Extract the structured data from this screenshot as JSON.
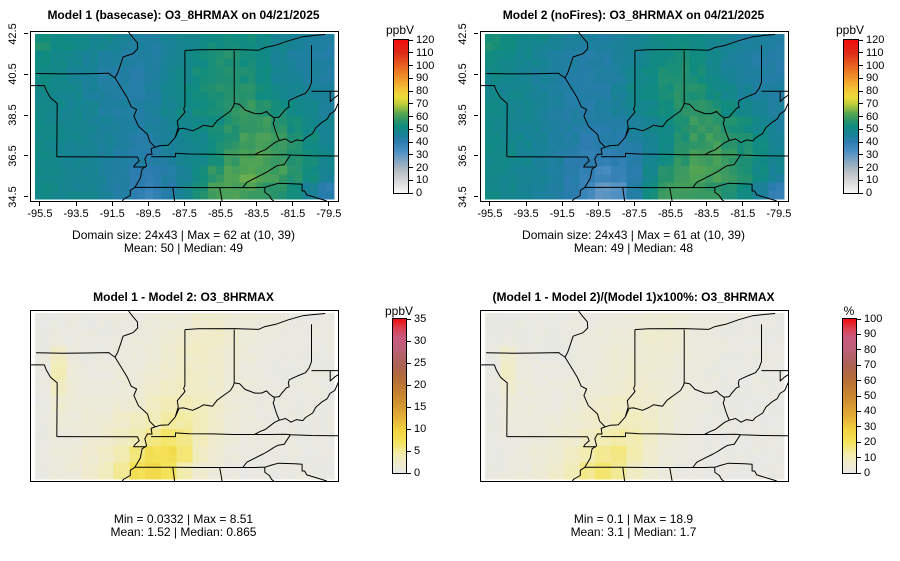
{
  "page": {
    "background": "#ffffff"
  },
  "colormaps": {
    "conc": [
      [
        0,
        "#f8f8f8"
      ],
      [
        0.067,
        "#dcdcdc"
      ],
      [
        0.133,
        "#bcc2c6"
      ],
      [
        0.2,
        "#8aa8c0"
      ],
      [
        0.267,
        "#4f90c4"
      ],
      [
        0.333,
        "#2c7cb0"
      ],
      [
        0.383,
        "#1a8198"
      ],
      [
        0.433,
        "#0f8b80"
      ],
      [
        0.475,
        "#2d9468"
      ],
      [
        0.517,
        "#55a553"
      ],
      [
        0.55,
        "#8bba45"
      ],
      [
        0.583,
        "#c1cc3c"
      ],
      [
        0.625,
        "#ecdc3a"
      ],
      [
        0.683,
        "#f4c136"
      ],
      [
        0.75,
        "#f0952a"
      ],
      [
        0.833,
        "#e7601f"
      ],
      [
        0.917,
        "#de2a17"
      ],
      [
        1,
        "#f20d0d"
      ]
    ],
    "diff": [
      [
        0,
        "#e8e8e4"
      ],
      [
        0.05,
        "#eeebd2"
      ],
      [
        0.12,
        "#f2ecae"
      ],
      [
        0.2,
        "#f4e35c"
      ],
      [
        0.28,
        "#f2d23f"
      ],
      [
        0.38,
        "#e0a936"
      ],
      [
        0.5,
        "#c9862f"
      ],
      [
        0.6,
        "#b76f38"
      ],
      [
        0.7,
        "#aa6254"
      ],
      [
        0.8,
        "#bb6079"
      ],
      [
        0.88,
        "#ca5a7e"
      ],
      [
        0.94,
        "#da3f50"
      ],
      [
        1,
        "#ee0c0c"
      ]
    ]
  },
  "chart_data": {
    "type": "heatmap",
    "layout": "2x2 model comparison maps",
    "lon_range": [
      -96.05,
      -79.05
    ],
    "lat_range": [
      34.33,
      42.63
    ],
    "panels": [
      {
        "id": "model1-basecase",
        "title": "Model 1 (basecase): O3_8HRMAX on 04/21/2025",
        "caption1": "Domain size: 24x43 | Max = 62 at (10, 39)",
        "caption2": "Mean: 50 |  Median: 49",
        "stats": {
          "domain_size": "24x43",
          "max": 62,
          "max_at": "(10, 39)",
          "mean": 50,
          "median": 49
        },
        "colorbar": {
          "unit": "ppbV",
          "min": 0,
          "max": 120,
          "ticks": [
            0,
            10,
            20,
            30,
            40,
            50,
            60,
            70,
            80,
            90,
            100,
            110,
            120
          ],
          "colormap": "conc"
        },
        "axes": {
          "x_ticks": [
            "-95.5",
            "-93.5",
            "-91.5",
            "-89.5",
            "-87.5",
            "-85.5",
            "-83.5",
            "-81.5",
            "-79.5"
          ],
          "y_ticks": [
            "34.5",
            "36.5",
            "38.5",
            "40.5",
            "42.5"
          ]
        },
        "value_jitter": 1.6,
        "grid_north_to_south": [
          [
            54,
            52,
            51,
            49,
            48,
            46,
            45,
            44,
            46,
            48,
            50,
            52,
            53,
            52,
            50,
            48,
            46,
            45,
            44
          ],
          [
            52,
            50,
            49,
            47,
            45,
            44,
            43,
            44,
            46,
            49,
            52,
            54,
            55,
            53,
            50,
            47,
            45,
            44,
            43
          ],
          [
            51,
            49,
            48,
            46,
            44,
            43,
            42,
            44,
            47,
            50,
            53,
            55,
            56,
            54,
            51,
            48,
            46,
            45,
            44
          ],
          [
            50,
            49,
            48,
            46,
            44,
            43,
            43,
            45,
            48,
            51,
            53,
            55,
            57,
            56,
            53,
            50,
            48,
            46,
            45
          ],
          [
            50,
            49,
            48,
            47,
            45,
            44,
            44,
            46,
            48,
            50,
            52,
            54,
            57,
            58,
            56,
            53,
            50,
            48,
            46
          ],
          [
            50,
            49,
            48,
            47,
            46,
            45,
            44,
            45,
            47,
            49,
            51,
            53,
            56,
            59,
            58,
            56,
            53,
            50,
            47
          ],
          [
            50,
            49,
            48,
            47,
            46,
            44,
            43,
            44,
            46,
            48,
            50,
            53,
            56,
            59,
            60,
            58,
            55,
            52,
            48
          ],
          [
            50,
            49,
            48,
            47,
            45,
            43,
            42,
            42,
            44,
            47,
            50,
            54,
            58,
            61,
            61,
            59,
            56,
            53,
            49
          ],
          [
            50,
            49,
            48,
            47,
            45,
            43,
            41,
            40,
            43,
            47,
            52,
            57,
            60,
            62,
            61,
            59,
            56,
            52,
            47
          ],
          [
            50,
            49,
            48,
            47,
            45,
            43,
            40,
            38,
            42,
            48,
            55,
            60,
            61,
            60,
            58,
            56,
            52,
            46,
            40
          ]
        ]
      },
      {
        "id": "model2-nofires",
        "title": "Model 2 (noFires): O3_8HRMAX on 04/21/2025",
        "caption1": "Domain size: 24x43 | Max = 61 at (10, 39)",
        "caption2": "Mean: 49 |  Median: 48",
        "stats": {
          "domain_size": "24x43",
          "max": 61,
          "max_at": "(10, 39)",
          "mean": 49,
          "median": 48
        },
        "colorbar": {
          "unit": "ppbV",
          "min": 0,
          "max": 120,
          "ticks": [
            0,
            10,
            20,
            30,
            40,
            50,
            60,
            70,
            80,
            90,
            100,
            110,
            120
          ],
          "colormap": "conc"
        },
        "axes": {
          "x_ticks": [
            "-95.5",
            "-93.5",
            "-91.5",
            "-89.5",
            "-87.5",
            "-85.5",
            "-83.5",
            "-81.5",
            "-79.5"
          ],
          "y_ticks": [
            "34.5",
            "36.5",
            "38.5",
            "40.5",
            "42.5"
          ]
        },
        "value_jitter": 1.6,
        "grid_north_to_south": [
          [
            54,
            52,
            50,
            49,
            48,
            46,
            45,
            44,
            45,
            47,
            49,
            51,
            52,
            51,
            49,
            47,
            45,
            44,
            43
          ],
          [
            52,
            50,
            49,
            47,
            45,
            44,
            43,
            43,
            45,
            47,
            50,
            52,
            54,
            52,
            49,
            46,
            44,
            43,
            42
          ],
          [
            51,
            49,
            48,
            46,
            44,
            43,
            42,
            43,
            45,
            48,
            51,
            54,
            55,
            53,
            50,
            47,
            45,
            44,
            43
          ],
          [
            50,
            49,
            48,
            46,
            44,
            43,
            42,
            43,
            46,
            49,
            51,
            54,
            56,
            55,
            52,
            49,
            47,
            45,
            44
          ],
          [
            50,
            49,
            48,
            46,
            44,
            43,
            42,
            44,
            46,
            48,
            50,
            52,
            56,
            57,
            55,
            52,
            49,
            47,
            45
          ],
          [
            50,
            49,
            48,
            46,
            45,
            43,
            42,
            42,
            44,
            46,
            48,
            51,
            55,
            58,
            57,
            55,
            52,
            49,
            46
          ],
          [
            50,
            49,
            48,
            46,
            45,
            43,
            41,
            41,
            42,
            44,
            47,
            51,
            55,
            58,
            59,
            57,
            54,
            51,
            47
          ],
          [
            50,
            49,
            48,
            46,
            44,
            42,
            40,
            39,
            40,
            43,
            47,
            52,
            57,
            60,
            60,
            58,
            55,
            52,
            48
          ],
          [
            50,
            49,
            47,
            46,
            44,
            41,
            38,
            35,
            37,
            41,
            49,
            55,
            59,
            61,
            60,
            58,
            55,
            51,
            46
          ],
          [
            50,
            49,
            47,
            46,
            44,
            41,
            36,
            30,
            32,
            43,
            52,
            58,
            60,
            59,
            57,
            55,
            51,
            45,
            39
          ]
        ]
      },
      {
        "id": "difference",
        "title": "Model 1 - Model 2: O3_8HRMAX",
        "caption1": "Min = 0.0332 | Max = 8.51",
        "caption2": "Mean: 1.52 |  Median: 0.865",
        "stats": {
          "min": 0.0332,
          "max": 8.51,
          "mean": 1.52,
          "median": 0.865
        },
        "colorbar": {
          "unit": "ppbV",
          "min": 0,
          "max": 35,
          "ticks": [
            0,
            5,
            10,
            15,
            20,
            25,
            30,
            35
          ],
          "colormap": "diff"
        },
        "axes": null,
        "value_jitter": 0.35,
        "grid_north_to_south": [
          [
            0.2,
            0.3,
            0.3,
            0.3,
            0.3,
            0.5,
            0.5,
            0.8,
            1.0,
            1.5,
            2.0,
            2.0,
            1.5,
            1.0,
            0.8,
            0.5,
            0.3,
            0.3,
            0.2
          ],
          [
            0.2,
            0.5,
            0.3,
            0.3,
            0.3,
            0.5,
            0.8,
            1.0,
            1.5,
            2.0,
            2.5,
            2.5,
            2.0,
            1.2,
            0.8,
            0.5,
            0.3,
            0.3,
            0.2
          ],
          [
            0.3,
            2.6,
            0.6,
            0.3,
            0.3,
            0.5,
            0.8,
            1.2,
            1.8,
            2.2,
            2.5,
            2.2,
            1.5,
            1.0,
            0.5,
            0.3,
            0.3,
            0.3,
            0.2
          ],
          [
            0.3,
            3.6,
            1.0,
            0.5,
            0.5,
            0.8,
            1.0,
            1.5,
            2.0,
            2.5,
            2.2,
            1.8,
            1.2,
            0.8,
            0.5,
            0.3,
            0.3,
            0.3,
            0.2
          ],
          [
            0.3,
            2.6,
            1.2,
            0.8,
            0.8,
            1.0,
            1.5,
            2.0,
            2.5,
            2.8,
            2.5,
            2.0,
            1.2,
            0.8,
            0.5,
            0.3,
            0.3,
            0.3,
            0.2
          ],
          [
            0.3,
            1.6,
            1.0,
            1.0,
            1.0,
            1.5,
            2.0,
            2.8,
            3.5,
            3.5,
            3.0,
            2.2,
            1.2,
            0.8,
            0.5,
            0.3,
            0.3,
            0.3,
            0.2
          ],
          [
            0.3,
            1.0,
            1.0,
            1.2,
            1.5,
            2.0,
            2.8,
            3.5,
            4.5,
            4.5,
            3.5,
            2.2,
            1.2,
            0.8,
            0.5,
            0.3,
            0.3,
            0.3,
            0.2
          ],
          [
            0.3,
            0.8,
            1.0,
            1.5,
            2.0,
            2.8,
            4.0,
            5.5,
            6.5,
            5.5,
            3.5,
            2.0,
            1.0,
            0.5,
            0.3,
            0.3,
            0.3,
            0.3,
            0.2
          ],
          [
            0.3,
            0.8,
            1.2,
            1.8,
            2.5,
            4.0,
            6.0,
            7.5,
            8.0,
            6.0,
            3.0,
            1.5,
            0.8,
            0.3,
            0.3,
            0.3,
            0.3,
            0.3,
            0.2
          ],
          [
            0.3,
            0.8,
            1.2,
            2.0,
            3.0,
            5.0,
            7.5,
            8.5,
            7.0,
            4.0,
            2.0,
            1.0,
            0.5,
            0.3,
            0.3,
            0.3,
            0.3,
            0.3,
            0.2
          ]
        ]
      },
      {
        "id": "percent-difference",
        "title": "(Model 1 - Model 2)/(Model 1)x100%: O3_8HRMAX",
        "caption1": "Min = 0.1 | Max = 18.9",
        "caption2": "Mean: 3.1 |  Median: 1.7",
        "stats": {
          "min": 0.1,
          "max": 18.9,
          "mean": 3.1,
          "median": 1.7
        },
        "colorbar": {
          "unit": "%",
          "min": 0,
          "max": 100,
          "ticks": [
            0,
            10,
            20,
            30,
            40,
            50,
            60,
            70,
            80,
            90,
            100
          ],
          "colormap": "diff"
        },
        "axes": null,
        "value_jitter": 1.0,
        "grid_north_to_south": [
          [
            0.4,
            0.6,
            0.6,
            0.6,
            0.6,
            1.0,
            1.0,
            1.8,
            2.0,
            3.0,
            4.0,
            4.0,
            3.0,
            2.0,
            1.6,
            1.0,
            0.6,
            0.6,
            0.4
          ],
          [
            0.4,
            1.0,
            0.6,
            0.6,
            0.6,
            1.0,
            1.8,
            2.0,
            3.0,
            4.0,
            5.0,
            5.0,
            4.0,
            2.4,
            1.6,
            1.0,
            0.6,
            0.6,
            0.4
          ],
          [
            0.6,
            5.0,
            1.2,
            0.6,
            0.6,
            1.0,
            1.8,
            2.6,
            4.0,
            4.5,
            5.0,
            4.4,
            3.0,
            2.0,
            1.0,
            0.6,
            0.6,
            0.6,
            0.4
          ],
          [
            0.6,
            7.0,
            2.0,
            1.0,
            1.0,
            1.6,
            2.0,
            3.0,
            4.0,
            5.0,
            4.4,
            3.6,
            2.4,
            1.6,
            1.0,
            0.6,
            0.6,
            0.6,
            0.4
          ],
          [
            0.6,
            5.0,
            2.4,
            1.6,
            1.6,
            2.0,
            3.0,
            4.0,
            5.0,
            5.6,
            5.0,
            4.0,
            2.4,
            1.6,
            1.0,
            0.6,
            0.6,
            0.6,
            0.4
          ],
          [
            0.6,
            3.0,
            2.0,
            2.0,
            2.0,
            3.0,
            4.0,
            5.6,
            7.0,
            7.0,
            6.0,
            4.4,
            2.4,
            1.6,
            1.0,
            0.6,
            0.6,
            0.6,
            0.4
          ],
          [
            0.6,
            2.0,
            2.0,
            2.4,
            3.0,
            4.0,
            5.6,
            7.0,
            9.0,
            9.0,
            7.0,
            4.4,
            2.4,
            1.6,
            1.0,
            0.6,
            0.6,
            0.6,
            0.4
          ],
          [
            0.6,
            1.6,
            2.0,
            3.0,
            4.0,
            5.6,
            8.0,
            11.0,
            13.0,
            11.0,
            7.0,
            4.0,
            2.0,
            1.0,
            0.6,
            0.6,
            0.6,
            0.6,
            0.4
          ],
          [
            0.6,
            1.6,
            2.4,
            3.6,
            5.0,
            8.0,
            12.0,
            15.0,
            16.0,
            12.0,
            6.0,
            3.0,
            1.6,
            0.6,
            0.6,
            0.6,
            0.6,
            0.6,
            0.4
          ],
          [
            0.6,
            1.6,
            2.4,
            4.0,
            6.0,
            10.0,
            15.0,
            18.5,
            14.0,
            8.0,
            4.0,
            2.0,
            1.0,
            0.6,
            0.6,
            0.6,
            0.6,
            0.6,
            0.4
          ]
        ]
      }
    ]
  }
}
